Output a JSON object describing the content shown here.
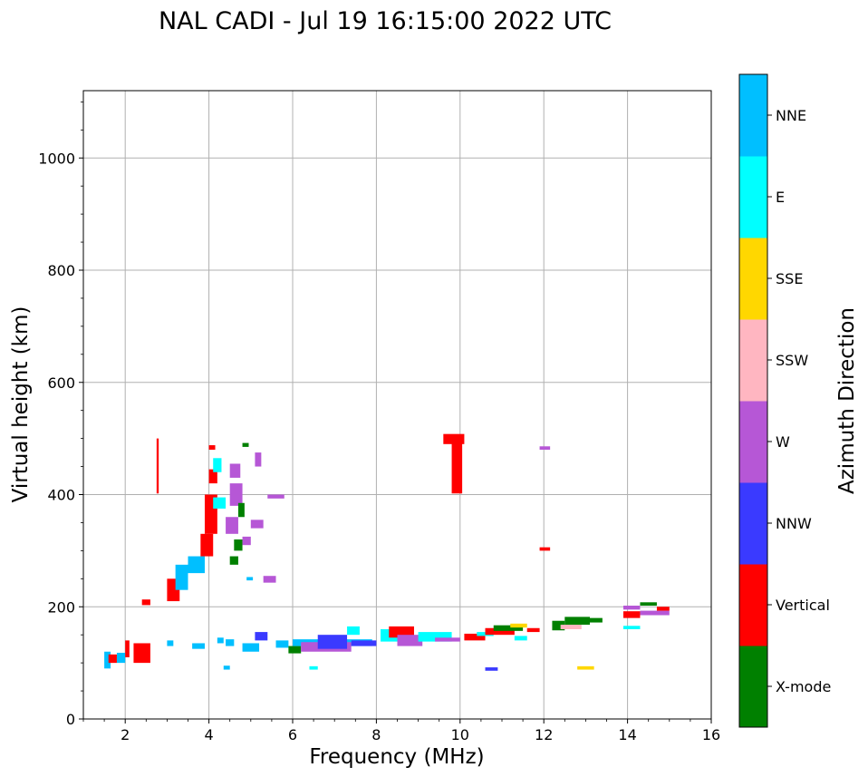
{
  "chart_data": {
    "type": "scatter",
    "title": "NAL CADI - Jul 19 16:15:00 2022 UTC",
    "xlabel": "Frequency (MHz)",
    "ylabel": "Virtual height (km)",
    "xlim": [
      1,
      16
    ],
    "ylim": [
      0,
      1120
    ],
    "xticks": [
      2,
      4,
      6,
      8,
      10,
      12,
      14,
      16
    ],
    "yticks": [
      0,
      200,
      400,
      600,
      800,
      1000
    ],
    "grid": true,
    "colorbar": {
      "label": "Azimuth Direction",
      "categories": [
        {
          "name": "X-mode",
          "color": "#008000"
        },
        {
          "name": "Vertical",
          "color": "#ff0000"
        },
        {
          "name": "NNW",
          "color": "#3a3aff"
        },
        {
          "name": "W",
          "color": "#b657d6"
        },
        {
          "name": "SSW",
          "color": "#ffb6c1"
        },
        {
          "name": "SSE",
          "color": "#ffd700"
        },
        {
          "name": "E",
          "color": "#00ffff"
        },
        {
          "name": "NNE",
          "color": "#00bfff"
        }
      ]
    },
    "echoes": [
      {
        "f": [
          1.5,
          1.65
        ],
        "h": [
          90,
          120
        ],
        "dir": "NNE"
      },
      {
        "f": [
          1.6,
          1.8
        ],
        "h": [
          100,
          115
        ],
        "dir": "Vertical"
      },
      {
        "f": [
          1.8,
          2.0
        ],
        "h": [
          100,
          118
        ],
        "dir": "NNE"
      },
      {
        "f": [
          2.0,
          2.1
        ],
        "h": [
          110,
          140
        ],
        "dir": "Vertical"
      },
      {
        "f": [
          2.2,
          2.6
        ],
        "h": [
          100,
          135
        ],
        "dir": "Vertical"
      },
      {
        "f": [
          2.4,
          2.6
        ],
        "h": [
          203,
          213
        ],
        "dir": "Vertical"
      },
      {
        "f": [
          2.75,
          2.8
        ],
        "h": [
          402,
          500
        ],
        "dir": "Vertical"
      },
      {
        "f": [
          3.0,
          3.15
        ],
        "h": [
          130,
          140
        ],
        "dir": "NNE"
      },
      {
        "f": [
          3.0,
          3.3
        ],
        "h": [
          210,
          250
        ],
        "dir": "Vertical"
      },
      {
        "f": [
          3.2,
          3.5
        ],
        "h": [
          230,
          275
        ],
        "dir": "NNE"
      },
      {
        "f": [
          3.5,
          3.9
        ],
        "h": [
          260,
          290
        ],
        "dir": "NNE"
      },
      {
        "f": [
          3.6,
          3.9
        ],
        "h": [
          125,
          135
        ],
        "dir": "NNE"
      },
      {
        "f": [
          3.8,
          4.1
        ],
        "h": [
          290,
          330
        ],
        "dir": "Vertical"
      },
      {
        "f": [
          3.9,
          4.2
        ],
        "h": [
          330,
          400
        ],
        "dir": "Vertical"
      },
      {
        "f": [
          4.0,
          4.2
        ],
        "h": [
          420,
          445
        ],
        "dir": "Vertical"
      },
      {
        "f": [
          4.0,
          4.15
        ],
        "h": [
          480,
          488
        ],
        "dir": "Vertical"
      },
      {
        "f": [
          4.1,
          4.3
        ],
        "h": [
          440,
          465
        ],
        "dir": "E"
      },
      {
        "f": [
          4.1,
          4.4
        ],
        "h": [
          375,
          395
        ],
        "dir": "E"
      },
      {
        "f": [
          4.2,
          4.35
        ],
        "h": [
          135,
          145
        ],
        "dir": "NNE"
      },
      {
        "f": [
          4.35,
          4.5
        ],
        "h": [
          88,
          95
        ],
        "dir": "NNE"
      },
      {
        "f": [
          4.4,
          4.6
        ],
        "h": [
          130,
          142
        ],
        "dir": "NNE"
      },
      {
        "f": [
          4.4,
          4.7
        ],
        "h": [
          330,
          360
        ],
        "dir": "W"
      },
      {
        "f": [
          4.5,
          4.8
        ],
        "h": [
          380,
          420
        ],
        "dir": "W"
      },
      {
        "f": [
          4.5,
          4.75
        ],
        "h": [
          430,
          455
        ],
        "dir": "W"
      },
      {
        "f": [
          4.5,
          4.7
        ],
        "h": [
          275,
          290
        ],
        "dir": "X-mode"
      },
      {
        "f": [
          4.6,
          4.8
        ],
        "h": [
          300,
          320
        ],
        "dir": "X-mode"
      },
      {
        "f": [
          4.7,
          4.85
        ],
        "h": [
          360,
          385
        ],
        "dir": "X-mode"
      },
      {
        "f": [
          4.8,
          4.95
        ],
        "h": [
          485,
          492
        ],
        "dir": "X-mode"
      },
      {
        "f": [
          4.8,
          5.0
        ],
        "h": [
          310,
          325
        ],
        "dir": "W"
      },
      {
        "f": [
          4.8,
          5.2
        ],
        "h": [
          120,
          135
        ],
        "dir": "NNE"
      },
      {
        "f": [
          4.9,
          5.05
        ],
        "h": [
          247,
          253
        ],
        "dir": "NNE"
      },
      {
        "f": [
          5.0,
          5.3
        ],
        "h": [
          340,
          355
        ],
        "dir": "W"
      },
      {
        "f": [
          5.1,
          5.4
        ],
        "h": [
          140,
          155
        ],
        "dir": "NNW"
      },
      {
        "f": [
          5.1,
          5.25
        ],
        "h": [
          450,
          475
        ],
        "dir": "W"
      },
      {
        "f": [
          5.3,
          5.6
        ],
        "h": [
          243,
          255
        ],
        "dir": "W"
      },
      {
        "f": [
          5.4,
          5.8
        ],
        "h": [
          393,
          400
        ],
        "dir": "W"
      },
      {
        "f": [
          5.6,
          5.9
        ],
        "h": [
          127,
          140
        ],
        "dir": "NNE"
      },
      {
        "f": [
          5.9,
          6.2
        ],
        "h": [
          117,
          130
        ],
        "dir": "X-mode"
      },
      {
        "f": [
          6.0,
          7.9
        ],
        "h": [
          130,
          142
        ],
        "dir": "NNE"
      },
      {
        "f": [
          6.2,
          7.4
        ],
        "h": [
          120,
          137
        ],
        "dir": "W"
      },
      {
        "f": [
          6.4,
          6.6
        ],
        "h": [
          88,
          94
        ],
        "dir": "E"
      },
      {
        "f": [
          6.6,
          7.3
        ],
        "h": [
          125,
          150
        ],
        "dir": "NNW"
      },
      {
        "f": [
          7.3,
          7.6
        ],
        "h": [
          150,
          165
        ],
        "dir": "E"
      },
      {
        "f": [
          7.4,
          8.0
        ],
        "h": [
          130,
          140
        ],
        "dir": "NNW"
      },
      {
        "f": [
          8.1,
          8.6
        ],
        "h": [
          138,
          160
        ],
        "dir": "E"
      },
      {
        "f": [
          8.3,
          8.9
        ],
        "h": [
          145,
          165
        ],
        "dir": "Vertical"
      },
      {
        "f": [
          8.5,
          9.1
        ],
        "h": [
          130,
          150
        ],
        "dir": "W"
      },
      {
        "f": [
          9.0,
          9.8
        ],
        "h": [
          138,
          155
        ],
        "dir": "E"
      },
      {
        "f": [
          9.4,
          10.0
        ],
        "h": [
          138,
          145
        ],
        "dir": "W"
      },
      {
        "f": [
          9.6,
          10.1
        ],
        "h": [
          490,
          508
        ],
        "dir": "Vertical"
      },
      {
        "f": [
          9.8,
          10.05
        ],
        "h": [
          402,
          500
        ],
        "dir": "Vertical"
      },
      {
        "f": [
          10.1,
          10.6
        ],
        "h": [
          140,
          152
        ],
        "dir": "Vertical"
      },
      {
        "f": [
          10.4,
          10.8
        ],
        "h": [
          148,
          155
        ],
        "dir": "E"
      },
      {
        "f": [
          10.6,
          10.9
        ],
        "h": [
          86,
          92
        ],
        "dir": "NNW"
      },
      {
        "f": [
          10.6,
          11.3
        ],
        "h": [
          150,
          162
        ],
        "dir": "Vertical"
      },
      {
        "f": [
          10.8,
          11.5
        ],
        "h": [
          157,
          167
        ],
        "dir": "X-mode"
      },
      {
        "f": [
          11.2,
          11.6
        ],
        "h": [
          163,
          170
        ],
        "dir": "SSE"
      },
      {
        "f": [
          11.3,
          11.6
        ],
        "h": [
          140,
          148
        ],
        "dir": "E"
      },
      {
        "f": [
          11.6,
          11.9
        ],
        "h": [
          155,
          162
        ],
        "dir": "Vertical"
      },
      {
        "f": [
          11.9,
          12.15
        ],
        "h": [
          480,
          486
        ],
        "dir": "W"
      },
      {
        "f": [
          11.9,
          12.15
        ],
        "h": [
          300,
          306
        ],
        "dir": "Vertical"
      },
      {
        "f": [
          12.2,
          12.5
        ],
        "h": [
          158,
          175
        ],
        "dir": "X-mode"
      },
      {
        "f": [
          12.4,
          12.9
        ],
        "h": [
          160,
          168
        ],
        "dir": "SSW"
      },
      {
        "f": [
          12.5,
          13.1
        ],
        "h": [
          168,
          182
        ],
        "dir": "X-mode"
      },
      {
        "f": [
          12.8,
          13.2
        ],
        "h": [
          88,
          94
        ],
        "dir": "SSE"
      },
      {
        "f": [
          13.0,
          13.4
        ],
        "h": [
          172,
          180
        ],
        "dir": "X-mode"
      },
      {
        "f": [
          13.9,
          14.3
        ],
        "h": [
          180,
          192
        ],
        "dir": "Vertical"
      },
      {
        "f": [
          13.9,
          14.3
        ],
        "h": [
          195,
          202
        ],
        "dir": "W"
      },
      {
        "f": [
          13.9,
          14.3
        ],
        "h": [
          160,
          166
        ],
        "dir": "E"
      },
      {
        "f": [
          14.3,
          14.7
        ],
        "h": [
          202,
          208
        ],
        "dir": "X-mode"
      },
      {
        "f": [
          14.3,
          15.0
        ],
        "h": [
          185,
          193
        ],
        "dir": "W"
      },
      {
        "f": [
          14.7,
          15.0
        ],
        "h": [
          193,
          200
        ],
        "dir": "Vertical"
      }
    ]
  }
}
